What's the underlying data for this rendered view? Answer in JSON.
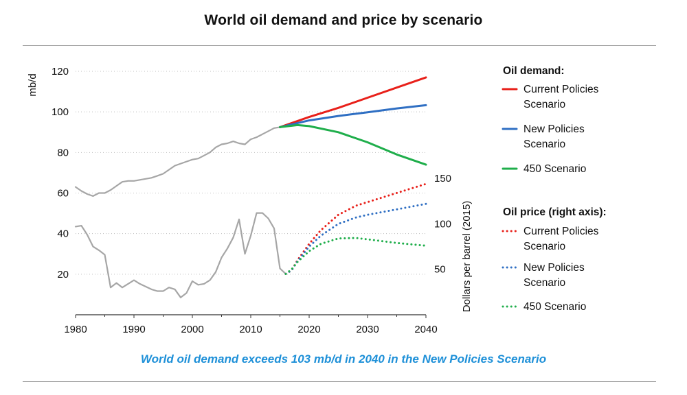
{
  "chart_data": {
    "type": "line",
    "title": "World oil demand and price by scenario",
    "subtitle": "World oil demand exceeds 103 mb/d in 2040 in the New Policies Scenario",
    "xlabel": "",
    "ylabel": "mb/d",
    "y2label": "Dollars per barrel (2015)",
    "xlim": [
      1980,
      2040
    ],
    "ylim": [
      0,
      120
    ],
    "y2lim": [
      0,
      150
    ],
    "x_ticks": [
      1980,
      1990,
      2000,
      2010,
      2020,
      2030,
      2040
    ],
    "y_ticks": [
      20,
      40,
      60,
      80,
      100,
      120
    ],
    "y2_ticks": [
      50,
      100,
      150
    ],
    "grid": "horizontal dotted",
    "legend_position": "right",
    "legend": {
      "demand_heading": "Oil demand:",
      "price_heading": "Oil price (right axis):"
    },
    "series": [
      {
        "name": "Historical demand",
        "axis": "left",
        "color": "#a6a6a6",
        "style": "solid",
        "x": [
          1980,
          1981,
          1982,
          1983,
          1984,
          1985,
          1986,
          1987,
          1988,
          1989,
          1990,
          1991,
          1992,
          1993,
          1994,
          1995,
          1996,
          1997,
          1998,
          1999,
          2000,
          2001,
          2002,
          2003,
          2004,
          2005,
          2006,
          2007,
          2008,
          2009,
          2010,
          2011,
          2012,
          2013,
          2014,
          2015
        ],
        "y": [
          63,
          61,
          59.5,
          58.5,
          60,
          60,
          61.5,
          63.5,
          65.5,
          66,
          66,
          66.5,
          67,
          67.5,
          68.5,
          69.5,
          71.5,
          73.5,
          74.5,
          75.5,
          76.5,
          77,
          78.5,
          80,
          82.5,
          84,
          84.5,
          85.5,
          84.5,
          84,
          86.5,
          87.5,
          89,
          90.5,
          92,
          92.5
        ]
      },
      {
        "name": "Historical price",
        "axis": "right",
        "color": "#a6a6a6",
        "style": "solid",
        "x": [
          1980,
          1981,
          1982,
          1983,
          1984,
          1985,
          1986,
          1987,
          1988,
          1989,
          1990,
          1991,
          1992,
          1993,
          1994,
          1995,
          1996,
          1997,
          1998,
          1999,
          2000,
          2001,
          2002,
          2003,
          2004,
          2005,
          2006,
          2007,
          2008,
          2009,
          2010,
          2011,
          2012,
          2013,
          2014,
          2015,
          2016
        ],
        "y": [
          97,
          98,
          88,
          75,
          71,
          66,
          30,
          35,
          30,
          34,
          38,
          34,
          31,
          28,
          26,
          26,
          30,
          28,
          19,
          24,
          37,
          33,
          34,
          38,
          47,
          63,
          73,
          85,
          105,
          67,
          87,
          112,
          112,
          106,
          95,
          51,
          45
        ]
      },
      {
        "name": "Current Policies Scenario",
        "axis": "left",
        "color": "#e8201a",
        "style": "solid",
        "x": [
          2015,
          2020,
          2025,
          2030,
          2035,
          2040
        ],
        "y": [
          92.5,
          97.5,
          102,
          107,
          112,
          117
        ]
      },
      {
        "name": "New Policies Scenario",
        "axis": "left",
        "color": "#2f6fc3",
        "style": "solid",
        "x": [
          2015,
          2020,
          2025,
          2030,
          2035,
          2040
        ],
        "y": [
          92.5,
          95.8,
          98,
          99.8,
          101.7,
          103.3
        ]
      },
      {
        "name": "450 Scenario",
        "axis": "left",
        "color": "#1fae4b",
        "style": "solid",
        "x": [
          2015,
          2018,
          2020,
          2025,
          2030,
          2035,
          2040
        ],
        "y": [
          92.5,
          93.5,
          93,
          90,
          85,
          79,
          74
        ]
      },
      {
        "name": "Current Policies Scenario",
        "axis": "right",
        "color": "#e8201a",
        "style": "dotted",
        "x": [
          2016,
          2017,
          2018,
          2020,
          2022,
          2025,
          2028,
          2030,
          2035,
          2040
        ],
        "y": [
          45,
          49,
          60,
          78,
          93,
          110,
          120,
          124,
          134,
          144
        ]
      },
      {
        "name": "New Policies Scenario",
        "axis": "right",
        "color": "#2f6fc3",
        "style": "dotted",
        "x": [
          2016,
          2017,
          2018,
          2020,
          2022,
          2025,
          2028,
          2030,
          2035,
          2040
        ],
        "y": [
          45,
          49,
          59,
          75,
          87,
          100,
          107,
          110,
          116,
          122
        ]
      },
      {
        "name": "450 Scenario",
        "axis": "right",
        "color": "#1fae4b",
        "style": "dotted",
        "x": [
          2016,
          2017,
          2018,
          2020,
          2022,
          2025,
          2028,
          2030,
          2035,
          2040
        ],
        "y": [
          45,
          50,
          58,
          70,
          78,
          84,
          84.5,
          83,
          79,
          76
        ]
      }
    ],
    "legend_items": [
      {
        "group": "demand",
        "label_1": "Current Policies",
        "label_2": "Scenario",
        "color": "#e8201a",
        "style": "solid"
      },
      {
        "group": "demand",
        "label_1": "New Policies",
        "label_2": "Scenario",
        "color": "#2f6fc3",
        "style": "solid"
      },
      {
        "group": "demand",
        "label_1": "450 Scenario",
        "label_2": "",
        "color": "#1fae4b",
        "style": "solid"
      },
      {
        "group": "price",
        "label_1": "Current Policies",
        "label_2": "Scenario",
        "color": "#e8201a",
        "style": "dotted"
      },
      {
        "group": "price",
        "label_1": "New Policies",
        "label_2": "Scenario",
        "color": "#2f6fc3",
        "style": "dotted"
      },
      {
        "group": "price",
        "label_1": "450 Scenario",
        "label_2": "",
        "color": "#1fae4b",
        "style": "dotted"
      }
    ]
  }
}
